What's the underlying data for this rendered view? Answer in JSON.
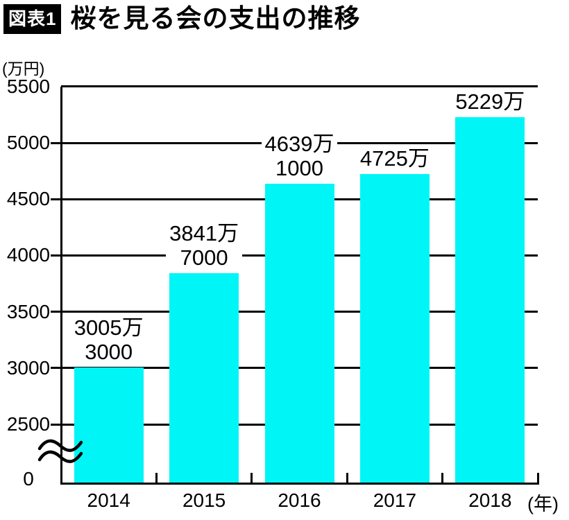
{
  "figure": {
    "tag_label": "図表1",
    "title": "桜を見る会の支出の推移"
  },
  "chart_data": {
    "type": "bar",
    "title": "桜を見る会の支出の推移",
    "xlabel": "(年)",
    "ylabel": "(万円)",
    "categories": [
      "2014",
      "2015",
      "2016",
      "2017",
      "2018"
    ],
    "values": [
      3005.3,
      3841.7,
      4639.1,
      4725,
      5229
    ],
    "bar_value_labels": [
      [
        "3005万",
        "3000"
      ],
      [
        "3841万",
        "7000"
      ],
      [
        "4639万",
        "1000"
      ],
      [
        "4725万"
      ],
      [
        "5229万"
      ]
    ],
    "y_ticks": [
      0,
      2500,
      3000,
      3500,
      4000,
      4500,
      5000,
      5500
    ],
    "ylim": [
      0,
      5500
    ],
    "y_axis_break": {
      "between": [
        0,
        2500
      ]
    },
    "grid": true,
    "legend": null,
    "bar_color": "#00f6f6",
    "axis_color": "#000000"
  }
}
